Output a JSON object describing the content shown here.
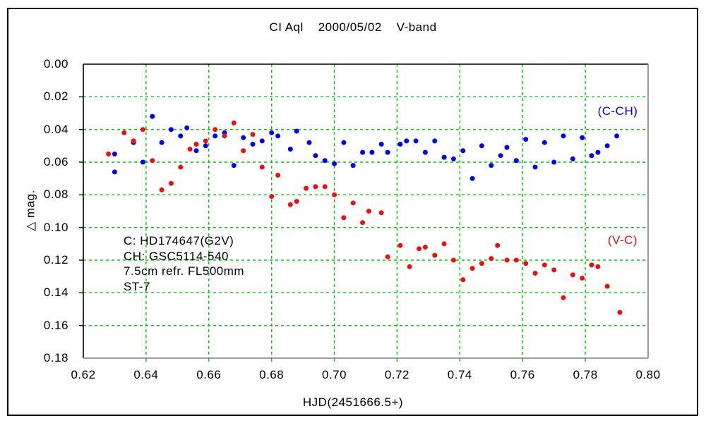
{
  "chart_data": {
    "type": "scatter",
    "title": "CI Aql    2000/05/02    V-band",
    "xlabel": "HJD(2451666.5+)",
    "ylabel": "△ mag.",
    "xlim": [
      0.62,
      0.8
    ],
    "ylim": [
      0.0,
      0.18
    ],
    "y_inverted": true,
    "grid": {
      "show": true,
      "color": "#00C400",
      "style": "dashed"
    },
    "frame": {
      "top_left_color": "#000000",
      "bottom_right_color": "#808080"
    },
    "x_ticks": [
      "0.62",
      "0.64",
      "0.66",
      "0.68",
      "0.70",
      "0.72",
      "0.74",
      "0.76",
      "0.78",
      "0.80"
    ],
    "y_ticks": [
      "0.00",
      "0.02",
      "0.04",
      "0.06",
      "0.08",
      "0.10",
      "0.12",
      "0.14",
      "0.16",
      "0.18"
    ],
    "annotations": [
      "C: HD174647(G2V)",
      "CH: GSC5114-540",
      "7.5cm refr. FL500mm",
      "ST-7"
    ],
    "series": [
      {
        "name": "C-CH",
        "label": "(C-CH)",
        "color": "#0000E8",
        "points": [
          [
            0.63,
            0.055
          ],
          [
            0.63,
            0.066
          ],
          [
            0.636,
            0.048
          ],
          [
            0.639,
            0.06
          ],
          [
            0.642,
            0.032
          ],
          [
            0.645,
            0.048
          ],
          [
            0.648,
            0.04
          ],
          [
            0.651,
            0.044
          ],
          [
            0.653,
            0.039
          ],
          [
            0.656,
            0.053
          ],
          [
            0.659,
            0.05
          ],
          [
            0.662,
            0.044
          ],
          [
            0.665,
            0.042
          ],
          [
            0.668,
            0.062
          ],
          [
            0.671,
            0.045
          ],
          [
            0.674,
            0.049
          ],
          [
            0.677,
            0.047
          ],
          [
            0.68,
            0.042
          ],
          [
            0.682,
            0.044
          ],
          [
            0.686,
            0.052
          ],
          [
            0.688,
            0.041
          ],
          [
            0.692,
            0.048
          ],
          [
            0.694,
            0.056
          ],
          [
            0.697,
            0.059
          ],
          [
            0.7,
            0.061
          ],
          [
            0.703,
            0.048
          ],
          [
            0.706,
            0.062
          ],
          [
            0.709,
            0.054
          ],
          [
            0.712,
            0.054
          ],
          [
            0.715,
            0.049
          ],
          [
            0.717,
            0.054
          ],
          [
            0.721,
            0.049
          ],
          [
            0.723,
            0.047
          ],
          [
            0.726,
            0.047
          ],
          [
            0.729,
            0.054
          ],
          [
            0.732,
            0.047
          ],
          [
            0.735,
            0.057
          ],
          [
            0.738,
            0.058
          ],
          [
            0.741,
            0.053
          ],
          [
            0.744,
            0.07
          ],
          [
            0.747,
            0.05
          ],
          [
            0.75,
            0.062
          ],
          [
            0.753,
            0.056
          ],
          [
            0.755,
            0.051
          ],
          [
            0.758,
            0.059
          ],
          [
            0.761,
            0.046
          ],
          [
            0.764,
            0.063
          ],
          [
            0.767,
            0.048
          ],
          [
            0.77,
            0.06
          ],
          [
            0.773,
            0.044
          ],
          [
            0.776,
            0.058
          ],
          [
            0.779,
            0.045
          ],
          [
            0.782,
            0.056
          ],
          [
            0.784,
            0.054
          ],
          [
            0.787,
            0.05
          ],
          [
            0.79,
            0.044
          ]
        ]
      },
      {
        "name": "V-C",
        "label": "(V-C)",
        "color": "#E81010",
        "points": [
          [
            0.628,
            0.055
          ],
          [
            0.633,
            0.042
          ],
          [
            0.636,
            0.047
          ],
          [
            0.639,
            0.04
          ],
          [
            0.642,
            0.059
          ],
          [
            0.645,
            0.077
          ],
          [
            0.648,
            0.073
          ],
          [
            0.651,
            0.063
          ],
          [
            0.654,
            0.052
          ],
          [
            0.656,
            0.049
          ],
          [
            0.659,
            0.047
          ],
          [
            0.662,
            0.04
          ],
          [
            0.665,
            0.044
          ],
          [
            0.668,
            0.036
          ],
          [
            0.671,
            0.053
          ],
          [
            0.674,
            0.043
          ],
          [
            0.677,
            0.063
          ],
          [
            0.68,
            0.081
          ],
          [
            0.682,
            0.068
          ],
          [
            0.686,
            0.086
          ],
          [
            0.688,
            0.084
          ],
          [
            0.691,
            0.076
          ],
          [
            0.694,
            0.075
          ],
          [
            0.697,
            0.075
          ],
          [
            0.7,
            0.08
          ],
          [
            0.703,
            0.094
          ],
          [
            0.706,
            0.085
          ],
          [
            0.709,
            0.097
          ],
          [
            0.711,
            0.09
          ],
          [
            0.715,
            0.091
          ],
          [
            0.717,
            0.118
          ],
          [
            0.721,
            0.111
          ],
          [
            0.724,
            0.124
          ],
          [
            0.727,
            0.113
          ],
          [
            0.729,
            0.112
          ],
          [
            0.732,
            0.117
          ],
          [
            0.735,
            0.11
          ],
          [
            0.738,
            0.12
          ],
          [
            0.741,
            0.132
          ],
          [
            0.744,
            0.125
          ],
          [
            0.747,
            0.122
          ],
          [
            0.75,
            0.119
          ],
          [
            0.752,
            0.111
          ],
          [
            0.755,
            0.12
          ],
          [
            0.758,
            0.12
          ],
          [
            0.761,
            0.122
          ],
          [
            0.764,
            0.128
          ],
          [
            0.767,
            0.123
          ],
          [
            0.77,
            0.126
          ],
          [
            0.773,
            0.143
          ],
          [
            0.776,
            0.129
          ],
          [
            0.779,
            0.131
          ],
          [
            0.782,
            0.123
          ],
          [
            0.784,
            0.124
          ],
          [
            0.787,
            0.136
          ],
          [
            0.791,
            0.152
          ]
        ]
      }
    ]
  }
}
